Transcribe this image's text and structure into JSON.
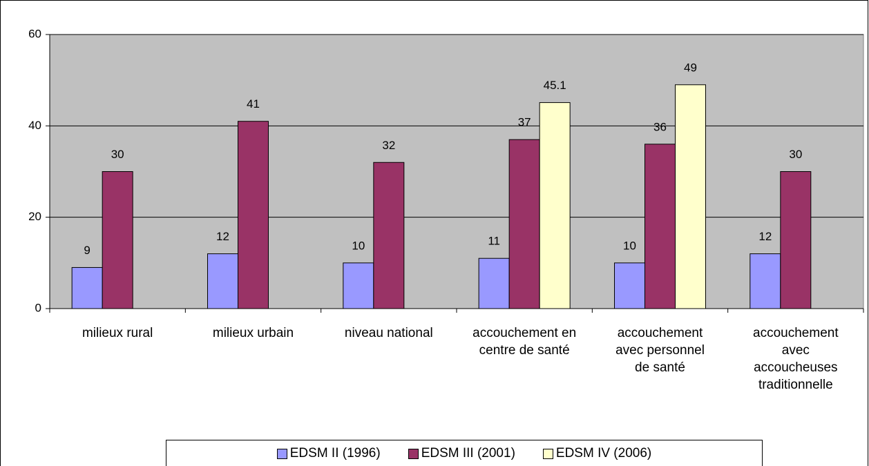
{
  "chart_data": {
    "type": "bar",
    "categories": [
      "milieux rural",
      "milieux urbain",
      "niveau national",
      "accouchement en centre de santé",
      "accouchement avec personnel de santé",
      "accouchement avec accoucheuses traditionnelle"
    ],
    "series": [
      {
        "name": "EDSM II (1996)",
        "color": "#9999ff",
        "values": [
          9,
          12,
          10,
          11,
          10,
          12
        ]
      },
      {
        "name": "EDSM III (2001)",
        "color": "#993366",
        "values": [
          30,
          41,
          32,
          37,
          36,
          30
        ]
      },
      {
        "name": "EDSM IV (2006)",
        "color": "#ffffcc",
        "values": [
          null,
          null,
          null,
          45.1,
          49,
          null
        ]
      }
    ],
    "ylim": [
      0,
      60
    ],
    "yticks": [
      0,
      20,
      40,
      60
    ],
    "grid": true,
    "plot_background": "#c0c0c0",
    "legend": "bottom"
  }
}
